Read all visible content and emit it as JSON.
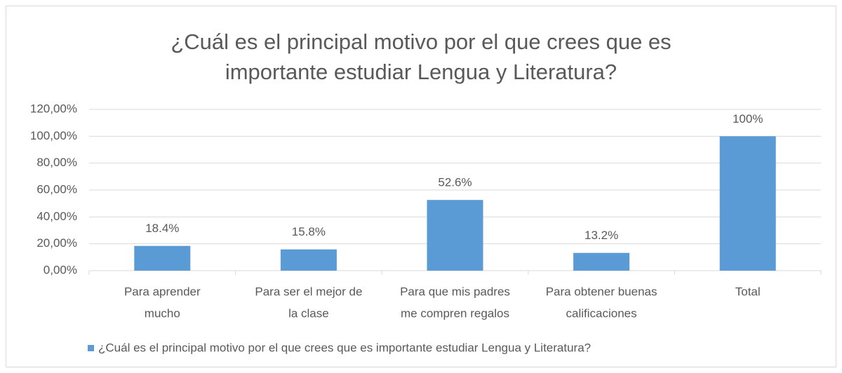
{
  "chart_data": {
    "type": "bar",
    "title": [
      "¿Cuál es el principal motivo por el que crees que es",
      "importante estudiar Lengua y Literatura?"
    ],
    "categories": [
      [
        "Para aprender",
        "mucho"
      ],
      [
        "Para ser el mejor de",
        "la clase"
      ],
      [
        "Para que mis padres",
        "me compren regalos"
      ],
      [
        "Para obtener buenas",
        "calificaciones"
      ],
      [
        "Total"
      ]
    ],
    "series": [
      {
        "name": "¿Cuál es el principal motivo por el que crees que es importante estudiar Lengua y Literatura?",
        "color": "#5b9bd5",
        "values": [
          18.4,
          15.8,
          52.6,
          13.2,
          100
        ],
        "value_labels": [
          "18.4%",
          "15.8%",
          "52.6%",
          "13.2%",
          "100%"
        ]
      }
    ],
    "ylim": [
      0,
      120
    ],
    "yticks": [
      {
        "value": 0,
        "label": "0,00%"
      },
      {
        "value": 20,
        "label": "20,00%"
      },
      {
        "value": 40,
        "label": "40,00%"
      },
      {
        "value": 60,
        "label": "60,00%"
      },
      {
        "value": 80,
        "label": "80,00%"
      },
      {
        "value": 100,
        "label": "100,00%"
      },
      {
        "value": 120,
        "label": "120,00%"
      }
    ],
    "grid": true,
    "legend": "bottom"
  }
}
